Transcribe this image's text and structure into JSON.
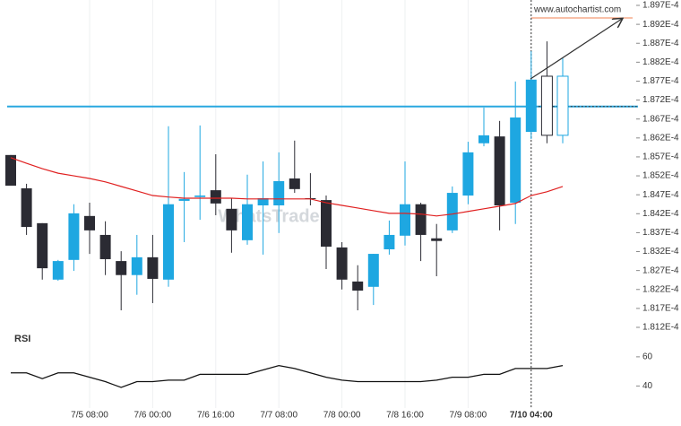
{
  "chart_data": {
    "type": "candlestick",
    "source": "www.autochartist.com",
    "watermark": "WhatsTrade",
    "categories": [
      null,
      null,
      null,
      null,
      null,
      "7/5 08:00",
      null,
      null,
      null,
      "7/6 00:00",
      null,
      null,
      null,
      "7/6 16:00",
      null,
      null,
      null,
      "7/7 08:00",
      null,
      null,
      null,
      "7/8 00:00",
      null,
      null,
      null,
      "7/8 16:00",
      null,
      null,
      null,
      "7/9 08:00",
      null,
      null,
      null,
      "7/10 04:00",
      null,
      null
    ],
    "series": [
      {
        "up_color": "#1ea7e1",
        "down_color": "#2b2b33",
        "open": [
          0.00018575,
          0.00018487,
          0.00018395,
          0.00018246,
          0.00018298,
          0.00018414,
          0.00018364,
          0.00018295,
          0.00018258,
          0.00018305,
          0.00018246,
          0.00018454,
          0.00018464,
          0.00018482,
          0.00018433,
          0.0001835,
          0.00018442,
          0.00018442,
          0.00018513,
          0.00018461,
          0.00018456,
          0.00018331,
          0.00018241,
          0.00018227,
          0.00018326,
          0.00018362,
          0.00018445,
          0.00018355,
          0.00018376,
          0.00018468,
          0.00018606,
          0.00018624,
          0.00018449,
          0.00018636,
          0.00018783,
          0.00018627
        ],
        "high": [
          0.00018575,
          0.00018499,
          0.00018395,
          0.00018298,
          0.00018445,
          0.00018449,
          0.000184,
          0.00018321,
          0.00018364,
          0.00018364,
          0.00018651,
          0.0001853,
          0.00018653,
          0.00018577,
          0.00018461,
          0.00018523,
          0.00018558,
          0.00018582,
          0.00018613,
          0.00018527,
          0.00018468,
          0.00018345,
          0.00018284,
          0.00018314,
          0.00018402,
          0.00018558,
          0.00018449,
          0.00018393,
          0.00018492,
          0.0001861,
          0.000187,
          0.00018665,
          0.00018769,
          0.00018849,
          0.00018875,
          0.00018833
        ],
        "low": [
          0.00018494,
          0.00018364,
          0.00018246,
          0.00018243,
          0.00018269,
          0.00018314,
          0.00018258,
          0.00018165,
          0.00018206,
          0.00018184,
          0.00018227,
          0.00018345,
          0.00018404,
          0.00018416,
          0.00018317,
          0.00018338,
          0.00018312,
          0.00018369,
          0.00018475,
          0.00018442,
          0.00018274,
          0.0001822,
          0.00018165,
          0.00018179,
          0.00018312,
          0.00018336,
          0.00018295,
          0.00018255,
          0.00018369,
          0.00018445,
          0.00018598,
          0.00018376,
          0.00018393,
          0.00018617,
          0.00018606,
          0.00018606
        ],
        "close": [
          0.00018494,
          0.00018385,
          0.00018276,
          0.00018295,
          0.00018421,
          0.00018376,
          0.000183,
          0.00018258,
          0.00018305,
          0.00018248,
          0.00018445,
          0.00018459,
          0.00018468,
          0.00018447,
          0.00018376,
          0.00018445,
          0.00018461,
          0.00018506,
          0.00018485,
          0.00018459,
          0.00018333,
          0.00018246,
          0.00018217,
          0.00018314,
          0.00018364,
          0.00018445,
          0.00018364,
          0.00018348,
          0.00018475,
          0.00018582,
          0.00018627,
          0.00018442,
          0.00018674,
          0.00018774,
          0.00018627,
          0.00018783
        ],
        "hollow": [
          false,
          false,
          false,
          false,
          false,
          false,
          false,
          false,
          false,
          false,
          false,
          false,
          false,
          false,
          false,
          false,
          false,
          false,
          false,
          false,
          false,
          false,
          false,
          false,
          false,
          false,
          false,
          false,
          false,
          false,
          false,
          false,
          false,
          false,
          true,
          true
        ]
      }
    ],
    "moving_average": {
      "color": "#e02020",
      "values": [
        0.00018568,
        0.00018553,
        0.00018539,
        0.00018527,
        0.0001852,
        0.00018513,
        0.00018504,
        0.00018492,
        0.0001848,
        0.00018468,
        0.00018464,
        0.00018461,
        0.00018461,
        0.00018461,
        0.00018461,
        0.00018459,
        0.00018459,
        0.00018459,
        0.00018459,
        0.00018459,
        0.00018449,
        0.00018442,
        0.00018435,
        0.00018428,
        0.00018421,
        0.00018421,
        0.00018419,
        0.00018414,
        0.00018419,
        0.00018426,
        0.00018433,
        0.0001844,
        0.00018447,
        0.00018468,
        0.00018478,
        0.00018492
      ]
    },
    "levels": [
      {
        "value": 0.00018703,
        "color": "#29a8e0"
      },
      {
        "value": 0.00018937,
        "color": "#f08050"
      }
    ],
    "ylim": [
      0.0001812,
      0.0001897
    ],
    "yticks": [
      {
        "value": 0.0001812,
        "label": "1.812E-4"
      },
      {
        "value": 0.0001817,
        "label": "1.817E-4"
      },
      {
        "value": 0.0001822,
        "label": "1.822E-4"
      },
      {
        "value": 0.0001827,
        "label": "1.827E-4"
      },
      {
        "value": 0.0001832,
        "label": "1.832E-4"
      },
      {
        "value": 0.0001837,
        "label": "1.837E-4"
      },
      {
        "value": 0.0001842,
        "label": "1.842E-4"
      },
      {
        "value": 0.0001847,
        "label": "1.847E-4"
      },
      {
        "value": 0.0001852,
        "label": "1.852E-4"
      },
      {
        "value": 0.0001857,
        "label": "1.857E-4"
      },
      {
        "value": 0.0001862,
        "label": "1.862E-4"
      },
      {
        "value": 0.0001867,
        "label": "1.867E-4"
      },
      {
        "value": 0.0001872,
        "label": "1.872E-4"
      },
      {
        "value": 0.0001877,
        "label": "1.877E-4"
      },
      {
        "value": 0.0001882,
        "label": "1.882E-4"
      },
      {
        "value": 0.0001887,
        "label": "1.887E-4"
      },
      {
        "value": 0.0001892,
        "label": "1.892E-4"
      },
      {
        "value": 0.0001897,
        "label": "1.897E-4"
      }
    ],
    "rsi": {
      "label": "RSI",
      "color": "#111111",
      "values": [
        49,
        49,
        45,
        49,
        49,
        46,
        43,
        39,
        43,
        43,
        44,
        44,
        48,
        48,
        48,
        48,
        51,
        54,
        52,
        49,
        46,
        44,
        43,
        43,
        43,
        43,
        43,
        44,
        46,
        46,
        48,
        48,
        52,
        52,
        52,
        54
      ],
      "ylim": [
        31,
        71
      ],
      "yticks": [
        60,
        40
      ]
    }
  }
}
